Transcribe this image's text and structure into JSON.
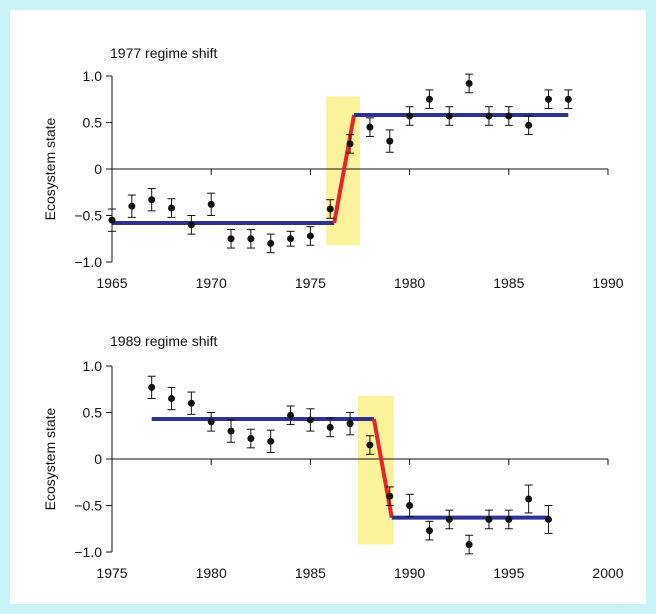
{
  "colors": {
    "frame": "#c8f4f8",
    "highlight": "#fbf29c",
    "plateau_line": "#2e3192",
    "shift_line": "#e8242b",
    "points": "#111111"
  },
  "chart_data": [
    {
      "type": "scatter",
      "title": "1977 regime shift",
      "ylabel": "Ecosystem state",
      "xlabel": "",
      "xlim": [
        1965,
        1990
      ],
      "ylim": [
        -1.0,
        1.0
      ],
      "xticks": [
        1965,
        1970,
        1975,
        1980,
        1985,
        1990
      ],
      "yticks": [
        1.0,
        0.5,
        0,
        -0.5,
        -1.0
      ],
      "xtick_labels": [
        "1965",
        "1970",
        "1975",
        "1980",
        "1985",
        "1990"
      ],
      "ytick_labels": [
        "1.0",
        "0.5",
        "0",
        "−0.5",
        "−1.0"
      ],
      "grid": false,
      "highlight_x": [
        1975.8,
        1977.5
      ],
      "highlight_y": [
        -0.82,
        0.78
      ],
      "series": [
        {
          "kind": "points",
          "x": [
            1965,
            1966,
            1967,
            1968,
            1969,
            1970,
            1971,
            1972,
            1973,
            1974,
            1975,
            1976,
            1977,
            1978,
            1979,
            1980,
            1981,
            1982,
            1983,
            1984,
            1985,
            1986,
            1987,
            1988
          ],
          "y": [
            -0.55,
            -0.4,
            -0.33,
            -0.42,
            -0.6,
            -0.38,
            -0.75,
            -0.75,
            -0.8,
            -0.75,
            -0.72,
            -0.43,
            0.27,
            0.45,
            0.3,
            0.57,
            0.75,
            0.57,
            0.92,
            0.57,
            0.57,
            0.47,
            0.75,
            0.75
          ],
          "err": [
            0.12,
            0.12,
            0.12,
            0.1,
            0.1,
            0.12,
            0.1,
            0.1,
            0.1,
            0.08,
            0.1,
            0.1,
            0.1,
            0.1,
            0.12,
            0.1,
            0.1,
            0.1,
            0.1,
            0.1,
            0.1,
            0.1,
            0.1,
            0.1
          ]
        },
        {
          "kind": "plateau",
          "x": [
            1965,
            1976.2
          ],
          "y": [
            -0.58,
            -0.58
          ]
        },
        {
          "kind": "shift",
          "x": [
            1976.2,
            1977.2
          ],
          "y": [
            -0.58,
            0.58
          ]
        },
        {
          "kind": "plateau",
          "x": [
            1977.2,
            1988
          ],
          "y": [
            0.58,
            0.58
          ]
        }
      ]
    },
    {
      "type": "scatter",
      "title": "1989 regime shift",
      "ylabel": "Ecosystem state",
      "xlabel": "",
      "xlim": [
        1975,
        2000
      ],
      "ylim": [
        -1.0,
        1.0
      ],
      "xticks": [
        1975,
        1980,
        1985,
        1990,
        1995,
        2000
      ],
      "yticks": [
        1.0,
        0.5,
        0,
        -0.5,
        -1.0
      ],
      "xtick_labels": [
        "1975",
        "1980",
        "1985",
        "1990",
        "1995",
        "2000"
      ],
      "ytick_labels": [
        "1.0",
        "0.5",
        "0",
        "−0.5",
        "−1.0"
      ],
      "grid": false,
      "highlight_x": [
        1987.4,
        1989.2
      ],
      "highlight_y": [
        -0.92,
        0.68
      ],
      "series": [
        {
          "kind": "points",
          "x": [
            1977,
            1978,
            1979,
            1980,
            1981,
            1982,
            1983,
            1984,
            1985,
            1986,
            1987,
            1988,
            1989,
            1990,
            1991,
            1992,
            1993,
            1994,
            1995,
            1996,
            1997
          ],
          "y": [
            0.77,
            0.65,
            0.6,
            0.4,
            0.3,
            0.22,
            0.19,
            0.47,
            0.42,
            0.34,
            0.38,
            0.15,
            -0.4,
            -0.5,
            -0.77,
            -0.65,
            -0.92,
            -0.65,
            -0.65,
            -0.43,
            -0.65
          ],
          "err": [
            0.12,
            0.12,
            0.12,
            0.1,
            0.12,
            0.1,
            0.12,
            0.1,
            0.12,
            0.1,
            0.12,
            0.1,
            0.1,
            0.12,
            0.1,
            0.1,
            0.1,
            0.1,
            0.1,
            0.15,
            0.15
          ]
        },
        {
          "kind": "plateau",
          "x": [
            1977,
            1988.2
          ],
          "y": [
            0.43,
            0.43
          ]
        },
        {
          "kind": "shift",
          "x": [
            1988.2,
            1989.1
          ],
          "y": [
            0.43,
            -0.63
          ]
        },
        {
          "kind": "plateau",
          "x": [
            1989.1,
            1997
          ],
          "y": [
            -0.63,
            -0.63
          ]
        }
      ]
    }
  ]
}
